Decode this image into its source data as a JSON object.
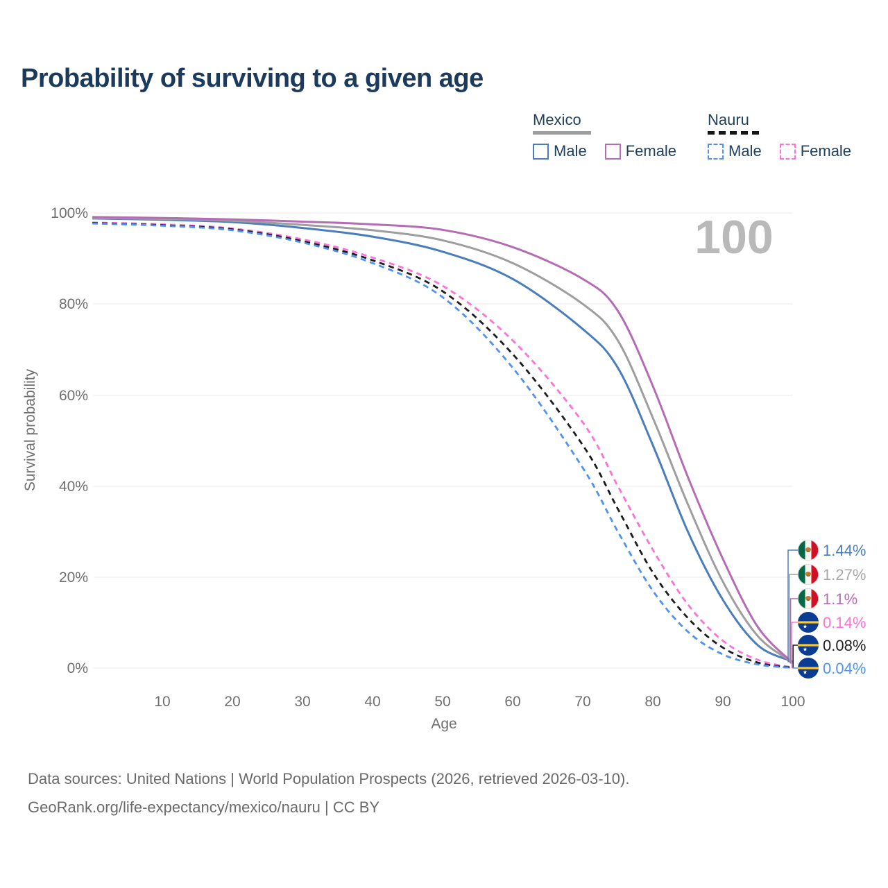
{
  "title": "Probability of surviving to a given age",
  "legend": {
    "groups": [
      {
        "country": "Mexico",
        "line_style": "solid",
        "underline_color": "#9e9e9e",
        "items": [
          {
            "label": "Male",
            "color": "#4a7dbb",
            "dashed": false
          },
          {
            "label": "Female",
            "color": "#b56cb4",
            "dashed": false
          }
        ]
      },
      {
        "country": "Nauru",
        "line_style": "dashed",
        "underline_color": "#151515",
        "items": [
          {
            "label": "Male",
            "color": "#4f92f2",
            "dashed": true
          },
          {
            "label": "Female",
            "color": "#ff70d8",
            "dashed": true
          }
        ]
      }
    ]
  },
  "watermark_age": "100",
  "chart_data": {
    "type": "line",
    "title": "Probability of surviving to a given age",
    "xlabel": "Age",
    "ylabel": "Survival probability",
    "xlim": [
      0,
      100
    ],
    "ylim": [
      0,
      100
    ],
    "grid": "horizontal-only",
    "x_ticks": [
      "10",
      "20",
      "30",
      "40",
      "50",
      "60",
      "70",
      "80",
      "90",
      "100"
    ],
    "y_ticks": [
      "100%",
      "80%",
      "60%",
      "40%",
      "20%",
      "0%"
    ],
    "x": [
      0,
      10,
      20,
      30,
      40,
      50,
      60,
      70,
      75,
      80,
      85,
      90,
      95,
      100
    ],
    "series": [
      {
        "id": "mexico-male",
        "name": "Mexico Male",
        "country": "Mexico",
        "sex": "Male",
        "color": "#4a7dbb",
        "dash": "solid",
        "flag": "mx",
        "end_label": "1.44%",
        "label_color": "#4a7dbb",
        "label_row": 0,
        "values": [
          98.8,
          98.5,
          98.0,
          96.7,
          94.8,
          91.5,
          85.5,
          74.5,
          66,
          49,
          30,
          15,
          5,
          1.44
        ]
      },
      {
        "id": "mexico-both",
        "name": "Mexico Both sexes",
        "country": "Mexico",
        "sex": "Both",
        "color": "#9e9e9e",
        "dash": "solid",
        "flag": "mx",
        "end_label": "1.27%",
        "label_color": "#a8a8a8",
        "label_row": 1,
        "values": [
          98.9,
          98.7,
          98.3,
          97.4,
          96.2,
          94.0,
          89.0,
          80.0,
          72,
          55,
          36,
          19,
          7,
          1.27
        ]
      },
      {
        "id": "mexico-female",
        "name": "Mexico Female",
        "country": "Mexico",
        "sex": "Female",
        "color": "#b56cb4",
        "dash": "solid",
        "flag": "mx",
        "end_label": "1.1%",
        "label_color": "#b56cb4",
        "label_row": 2,
        "values": [
          99.1,
          98.9,
          98.6,
          98.1,
          97.5,
          96.3,
          92.5,
          85.5,
          78.5,
          62,
          42,
          24,
          9,
          1.1
        ]
      },
      {
        "id": "nauru-female",
        "name": "Nauru Female",
        "country": "Nauru",
        "sex": "Female",
        "color": "#ff70d8",
        "dash": "dashed",
        "flag": "nr",
        "end_label": "0.14%",
        "label_color": "#ff70d8",
        "label_row": 3,
        "values": [
          97.9,
          97.5,
          96.6,
          94.2,
          90.2,
          84.0,
          72.0,
          54.0,
          40,
          26,
          14,
          6,
          1.8,
          0.14
        ]
      },
      {
        "id": "nauru-both",
        "name": "Nauru Both sexes",
        "country": "Nauru",
        "sex": "Both",
        "color": "#1c1c1c",
        "dash": "dashed",
        "flag": "nr",
        "end_label": "0.08%",
        "label_color": "#1f1f1f",
        "label_row": 4,
        "values": [
          97.8,
          97.3,
          96.4,
          93.8,
          89.6,
          82.8,
          69.0,
          49.0,
          35,
          21,
          11,
          4.5,
          1.2,
          0.08
        ]
      },
      {
        "id": "nauru-male",
        "name": "Nauru Male",
        "country": "Nauru",
        "sex": "Male",
        "color": "#4f92f2",
        "dash": "dashed",
        "flag": "nr",
        "end_label": "0.04%",
        "label_color": "#4f92f2",
        "label_row": 5,
        "values": [
          97.7,
          97.2,
          96.2,
          93.5,
          89.0,
          81.5,
          66.0,
          44.0,
          30,
          17,
          8,
          3,
          0.8,
          0.04
        ]
      }
    ]
  },
  "footer": {
    "line1": "Data sources: United Nations | World Population Prospects (2026, retrieved 2026-03-10).",
    "line2": "GeoRank.org/life-expectancy/mexico/nauru | CC BY"
  }
}
